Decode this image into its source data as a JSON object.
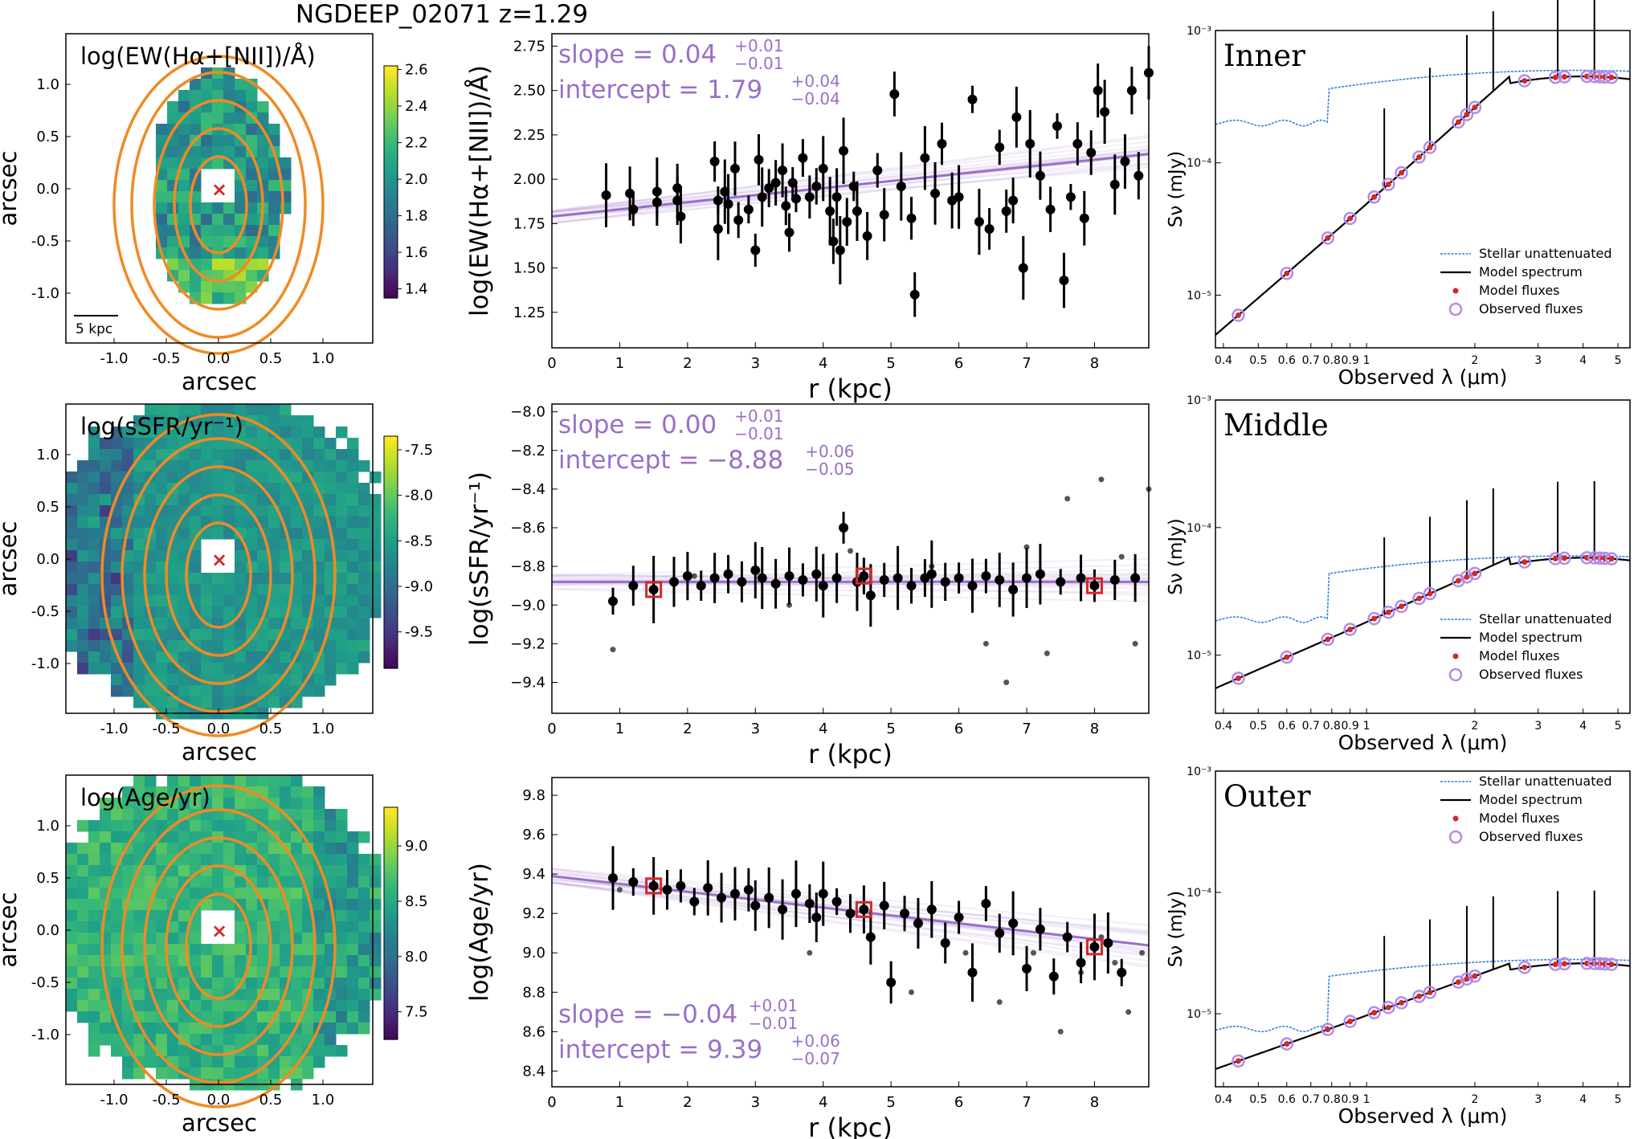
{
  "figure": {
    "title": "NGDEEP_02071 z=1.29"
  },
  "colors": {
    "contour": "#f08a24",
    "fit": "#9a6fc7",
    "marker_red": "#d62728",
    "stellar": "#2f7fe3",
    "model": "#000000",
    "obs_ring": "#b48be6"
  },
  "maps": [
    {
      "label": "log(EW(Hα+[NII])/Å)",
      "xlabel": "arcsec",
      "ylabel": "arcsec",
      "ticks": [
        "-1.0",
        "-0.5",
        "0.0",
        "0.5",
        "1.0"
      ],
      "yticks": [
        "1.0",
        "0.5",
        "0.0",
        "-0.5",
        "-1.0"
      ],
      "colorbar_ticks": [
        "2.6",
        "2.4",
        "2.2",
        "2.0",
        "1.8",
        "1.6",
        "1.4"
      ],
      "colorbar_range": [
        1.35,
        2.62
      ],
      "scalebar": "5 kpc",
      "center_marker": "×"
    },
    {
      "label": "log(sSFR/yr⁻¹)",
      "xlabel": "arcsec",
      "ylabel": "arcsec",
      "ticks": [
        "-1.0",
        "-0.5",
        "0.0",
        "0.5",
        "1.0"
      ],
      "yticks": [
        "1.0",
        "0.5",
        "0.0",
        "-0.5",
        "-1.0"
      ],
      "colorbar_ticks": [
        "-7.5",
        "-8.0",
        "-8.5",
        "-9.0",
        "-9.5"
      ],
      "colorbar_range": [
        -9.9,
        -7.35
      ],
      "center_marker": "×"
    },
    {
      "label": "log(Age/yr)",
      "xlabel": "arcsec",
      "ylabel": "arcsec",
      "ticks": [
        "-1.0",
        "-0.5",
        "0.0",
        "0.5",
        "1.0"
      ],
      "yticks": [
        "1.0",
        "0.5",
        "0.0",
        "-0.5",
        "-1.0"
      ],
      "colorbar_ticks": [
        "9.0",
        "8.5",
        "8.0",
        "7.5"
      ],
      "colorbar_range": [
        7.25,
        9.35
      ],
      "center_marker": "×"
    }
  ],
  "chart_data": [
    {
      "type": "scatter",
      "ylabel": "log(EW(Hα+[NII])/Å)",
      "xlabel": "r (kpc)",
      "xlim": [
        0,
        8.8
      ],
      "ylim": [
        1.05,
        2.82
      ],
      "xticks": [
        "0",
        "1",
        "2",
        "3",
        "4",
        "5",
        "6",
        "7",
        "8"
      ],
      "yticks": [
        "1.25",
        "1.50",
        "1.75",
        "2.00",
        "2.25",
        "2.50",
        "2.75"
      ],
      "slope": {
        "label": "slope = 0.04",
        "sup": "+0.01",
        "sub": "−0.01"
      },
      "intercept": {
        "label": "intercept = 1.79",
        "sup": "+0.04",
        "sub": "−0.04"
      },
      "fit": {
        "slope": 0.04,
        "intercept": 1.79
      },
      "points": [
        [
          0.8,
          1.91
        ],
        [
          1.15,
          1.92
        ],
        [
          1.2,
          1.83
        ],
        [
          1.55,
          1.93
        ],
        [
          1.55,
          1.87
        ],
        [
          1.85,
          1.95
        ],
        [
          1.85,
          1.88
        ],
        [
          1.9,
          1.79
        ],
        [
          2.4,
          2.1
        ],
        [
          2.45,
          1.88
        ],
        [
          2.45,
          1.72
        ],
        [
          2.55,
          1.93
        ],
        [
          2.6,
          1.86
        ],
        [
          2.7,
          2.06
        ],
        [
          2.75,
          1.77
        ],
        [
          2.9,
          1.83
        ],
        [
          3.0,
          1.6
        ],
        [
          3.05,
          2.11
        ],
        [
          3.1,
          1.9
        ],
        [
          3.2,
          1.95
        ],
        [
          3.3,
          1.98
        ],
        [
          3.4,
          2.05
        ],
        [
          3.45,
          1.85
        ],
        [
          3.5,
          1.7
        ],
        [
          3.55,
          1.98
        ],
        [
          3.6,
          1.89
        ],
        [
          3.7,
          2.12
        ],
        [
          3.8,
          1.9
        ],
        [
          3.9,
          1.96
        ],
        [
          4.0,
          2.06
        ],
        [
          4.1,
          1.82
        ],
        [
          4.15,
          1.65
        ],
        [
          4.2,
          1.9
        ],
        [
          4.25,
          1.6
        ],
        [
          4.3,
          2.16
        ],
        [
          4.35,
          1.76
        ],
        [
          4.45,
          1.96
        ],
        [
          4.5,
          1.82
        ],
        [
          4.65,
          1.68
        ],
        [
          4.8,
          2.05
        ],
        [
          4.9,
          1.8
        ],
        [
          5.05,
          2.48
        ],
        [
          5.15,
          1.96
        ],
        [
          5.3,
          1.78
        ],
        [
          5.35,
          1.35
        ],
        [
          5.5,
          2.12
        ],
        [
          5.65,
          1.92
        ],
        [
          5.75,
          2.2
        ],
        [
          5.9,
          1.88
        ],
        [
          6.0,
          1.9
        ],
        [
          6.2,
          2.45
        ],
        [
          6.3,
          1.76
        ],
        [
          6.45,
          1.72
        ],
        [
          6.6,
          2.18
        ],
        [
          6.7,
          1.82
        ],
        [
          6.8,
          1.88
        ],
        [
          6.85,
          2.35
        ],
        [
          6.95,
          1.5
        ],
        [
          7.05,
          2.2
        ],
        [
          7.2,
          2.02
        ],
        [
          7.35,
          1.83
        ],
        [
          7.45,
          2.3
        ],
        [
          7.55,
          1.43
        ],
        [
          7.65,
          1.9
        ],
        [
          7.75,
          2.2
        ],
        [
          7.85,
          1.78
        ],
        [
          7.95,
          2.15
        ],
        [
          8.05,
          2.5
        ],
        [
          8.15,
          2.38
        ],
        [
          8.3,
          1.97
        ],
        [
          8.45,
          2.1
        ],
        [
          8.55,
          2.5
        ],
        [
          8.65,
          2.02
        ],
        [
          8.8,
          2.6
        ]
      ],
      "extra_points": []
    },
    {
      "type": "scatter",
      "ylabel": "log(sSFR/yr⁻¹)",
      "xlabel": "r (kpc)",
      "xlim": [
        0,
        8.8
      ],
      "ylim": [
        -9.56,
        -7.96
      ],
      "xticks": [
        "0",
        "1",
        "2",
        "3",
        "4",
        "5",
        "6",
        "7",
        "8"
      ],
      "yticks": [
        "-8.0",
        "-8.2",
        "-8.4",
        "-8.6",
        "-8.8",
        "-9.0",
        "-9.2",
        "-9.4"
      ],
      "slope": {
        "label": "slope = 0.00",
        "sup": "+0.01",
        "sub": "−0.01"
      },
      "intercept": {
        "label": "intercept = −8.88",
        "sup": "+0.06",
        "sub": "−0.05"
      },
      "fit": {
        "slope": 0.0,
        "intercept": -8.88
      },
      "points": [
        [
          0.9,
          -8.98
        ],
        [
          1.2,
          -8.9
        ],
        [
          1.5,
          -8.92
        ],
        [
          1.8,
          -8.88
        ],
        [
          2.0,
          -8.85
        ],
        [
          2.2,
          -8.9
        ],
        [
          2.4,
          -8.86
        ],
        [
          2.6,
          -8.84
        ],
        [
          2.8,
          -8.88
        ],
        [
          3.0,
          -8.82
        ],
        [
          3.1,
          -8.86
        ],
        [
          3.3,
          -8.89
        ],
        [
          3.5,
          -8.85
        ],
        [
          3.7,
          -8.87
        ],
        [
          3.9,
          -8.84
        ],
        [
          4.0,
          -8.9
        ],
        [
          4.2,
          -8.86
        ],
        [
          4.3,
          -8.6
        ],
        [
          4.5,
          -8.88
        ],
        [
          4.6,
          -8.85
        ],
        [
          4.7,
          -8.95
        ],
        [
          4.9,
          -8.87
        ],
        [
          5.1,
          -8.86
        ],
        [
          5.3,
          -8.9
        ],
        [
          5.5,
          -8.86
        ],
        [
          5.6,
          -8.84
        ],
        [
          5.8,
          -8.88
        ],
        [
          6.0,
          -8.86
        ],
        [
          6.2,
          -8.9
        ],
        [
          6.4,
          -8.85
        ],
        [
          6.6,
          -8.87
        ],
        [
          6.8,
          -8.92
        ],
        [
          7.0,
          -8.86
        ],
        [
          7.2,
          -8.84
        ],
        [
          7.5,
          -8.88
        ],
        [
          7.8,
          -8.86
        ],
        [
          8.0,
          -8.9
        ],
        [
          8.3,
          -8.87
        ],
        [
          8.6,
          -8.86
        ]
      ],
      "extra_points": [
        [
          0.9,
          -9.23
        ],
        [
          2.1,
          -8.85
        ],
        [
          3.5,
          -9.0
        ],
        [
          4.4,
          -8.72
        ],
        [
          5.6,
          -8.8
        ],
        [
          6.4,
          -9.2
        ],
        [
          6.7,
          -9.4
        ],
        [
          7.0,
          -8.7
        ],
        [
          7.3,
          -9.25
        ],
        [
          7.6,
          -8.45
        ],
        [
          8.1,
          -8.35
        ],
        [
          8.4,
          -8.75
        ],
        [
          8.6,
          -9.2
        ],
        [
          8.8,
          -8.4
        ]
      ],
      "highlight": [
        [
          1.5,
          -8.92
        ],
        [
          4.6,
          -8.85
        ],
        [
          8.0,
          -8.9
        ]
      ]
    },
    {
      "type": "scatter",
      "ylabel": "log(Age/yr)",
      "xlabel": "r (kpc)",
      "xlim": [
        0,
        8.8
      ],
      "ylim": [
        8.32,
        9.89
      ],
      "xticks": [
        "0",
        "1",
        "2",
        "3",
        "4",
        "5",
        "6",
        "7",
        "8"
      ],
      "yticks": [
        "8.4",
        "8.6",
        "8.8",
        "9.0",
        "9.2",
        "9.4",
        "9.6",
        "9.8"
      ],
      "slope": {
        "label": "slope = −0.04",
        "sup": "+0.01",
        "sub": "−0.01"
      },
      "intercept": {
        "label": "intercept = 9.39",
        "sup": "+0.06",
        "sub": "−0.07"
      },
      "fit": {
        "slope": -0.04,
        "intercept": 9.39
      },
      "points": [
        [
          0.9,
          9.38
        ],
        [
          1.2,
          9.36
        ],
        [
          1.5,
          9.34
        ],
        [
          1.7,
          9.32
        ],
        [
          1.9,
          9.34
        ],
        [
          2.1,
          9.26
        ],
        [
          2.3,
          9.33
        ],
        [
          2.5,
          9.28
        ],
        [
          2.7,
          9.3
        ],
        [
          2.9,
          9.32
        ],
        [
          3.0,
          9.24
        ],
        [
          3.2,
          9.28
        ],
        [
          3.4,
          9.22
        ],
        [
          3.6,
          9.3
        ],
        [
          3.8,
          9.25
        ],
        [
          3.9,
          9.18
        ],
        [
          4.0,
          9.3
        ],
        [
          4.2,
          9.26
        ],
        [
          4.4,
          9.2
        ],
        [
          4.6,
          9.22
        ],
        [
          4.7,
          9.08
        ],
        [
          4.9,
          9.24
        ],
        [
          5.0,
          8.85
        ],
        [
          5.2,
          9.2
        ],
        [
          5.4,
          9.15
        ],
        [
          5.6,
          9.22
        ],
        [
          5.8,
          9.05
        ],
        [
          6.0,
          9.18
        ],
        [
          6.2,
          8.9
        ],
        [
          6.4,
          9.25
        ],
        [
          6.6,
          9.1
        ],
        [
          6.8,
          9.15
        ],
        [
          7.0,
          8.92
        ],
        [
          7.2,
          9.12
        ],
        [
          7.4,
          8.88
        ],
        [
          7.6,
          9.08
        ],
        [
          7.8,
          8.95
        ],
        [
          8.0,
          9.03
        ],
        [
          8.2,
          9.05
        ],
        [
          8.4,
          8.9
        ]
      ],
      "extra_points": [
        [
          1.0,
          9.32
        ],
        [
          3.8,
          9.0
        ],
        [
          5.3,
          8.8
        ],
        [
          6.1,
          9.0
        ],
        [
          6.6,
          8.75
        ],
        [
          7.1,
          9.0
        ],
        [
          7.5,
          8.6
        ],
        [
          7.8,
          8.9
        ],
        [
          8.1,
          9.08
        ],
        [
          8.3,
          8.95
        ],
        [
          8.5,
          8.7
        ],
        [
          8.7,
          9.0
        ]
      ],
      "highlight": [
        [
          1.5,
          9.34
        ],
        [
          4.6,
          9.22
        ],
        [
          8.0,
          9.03
        ]
      ]
    },
    {
      "type": "line",
      "label": "Inner",
      "ylabel": "Sν (mJy)",
      "xlabel": "Observed λ (μm)",
      "xlim": [
        0.38,
        5.4
      ],
      "ylim": [
        4e-06,
        0.001
      ],
      "xticks": [
        "0.4",
        "0.5",
        "0.6",
        "0.7",
        "0.8",
        "0.9",
        "1",
        "2",
        "3",
        "4",
        "5"
      ],
      "yticks": [
        "10⁻³",
        "10⁻⁴",
        "10⁻⁵"
      ],
      "legend": [
        "Stellar unattenuated",
        "Model spectrum",
        "Model fluxes",
        "Observed fluxes"
      ],
      "model_level": 0.00045,
      "stellar_level": 0.0005,
      "blue_level": 0.0002,
      "model_start": 5e-06
    },
    {
      "type": "line",
      "label": "Middle",
      "ylabel": "Sν (mJy)",
      "xlabel": "Observed λ (μm)",
      "xlim": [
        0.38,
        5.4
      ],
      "ylim": [
        3.5e-06,
        0.001
      ],
      "xticks": [
        "0.4",
        "0.5",
        "0.6",
        "0.7",
        "0.8",
        "0.9",
        "1",
        "2",
        "3",
        "4",
        "5"
      ],
      "yticks": [
        "10⁻³",
        "10⁻⁴",
        "10⁻⁵"
      ],
      "legend": [
        "Stellar unattenuated",
        "Model spectrum",
        "Model fluxes",
        "Observed fluxes"
      ],
      "model_level": 5.8e-05,
      "stellar_level": 6e-05,
      "blue_level": 1.9e-05,
      "model_start": 5.5e-06
    },
    {
      "type": "line",
      "label": "Outer",
      "ylabel": "Sν (mJy)",
      "xlabel": "Observed λ (μm)",
      "xlim": [
        0.38,
        5.4
      ],
      "ylim": [
        2.5e-06,
        0.001
      ],
      "xticks": [
        "0.4",
        "0.5",
        "0.6",
        "0.7",
        "0.8",
        "0.9",
        "1",
        "2",
        "3",
        "4",
        "5"
      ],
      "yticks": [
        "10⁻³",
        "10⁻⁴",
        "10⁻⁵"
      ],
      "legend": [
        "Stellar unattenuated",
        "Model spectrum",
        "Model fluxes",
        "Observed fluxes"
      ],
      "model_level": 2.6e-05,
      "stellar_level": 2.8e-05,
      "blue_level": 7.5e-06,
      "model_start": 3.5e-06
    }
  ]
}
